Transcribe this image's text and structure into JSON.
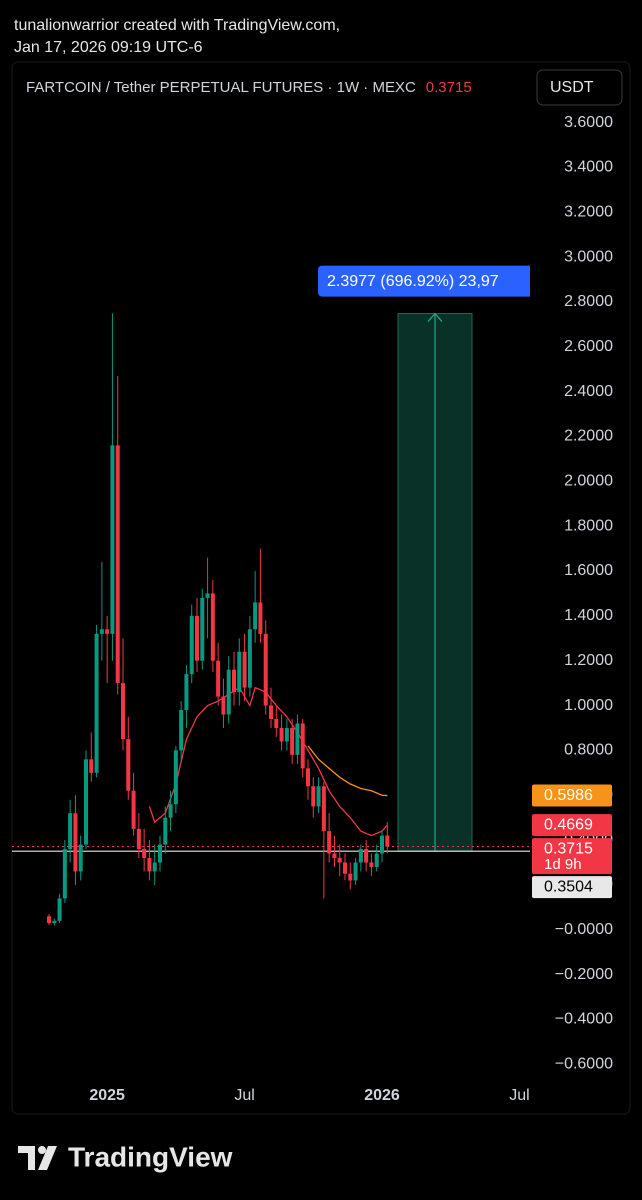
{
  "header": {
    "line1": "tunalionwarrior created with TradingView.com,",
    "line2": "Jan 17, 2026 09:19 UTC-6"
  },
  "footer": {
    "brand": "TradingView"
  },
  "chart_data": {
    "type": "candlestick",
    "title": "FARTCOIN / Tether PERPETUAL FUTURES · 1W · MEXC",
    "currency": "USDT",
    "up_color": "#089981",
    "down_color": "#f23645",
    "x": [
      -11,
      -10,
      -9,
      -8,
      -7,
      -6,
      -5,
      -4,
      -3,
      -2,
      -1,
      0,
      1,
      2,
      3,
      4,
      5,
      6,
      7,
      8,
      9,
      10,
      11,
      12,
      13,
      14,
      15,
      16,
      17,
      18,
      19,
      20,
      21,
      22,
      23,
      24,
      25,
      26,
      27,
      28,
      29,
      30,
      31,
      32,
      33,
      34,
      35,
      36,
      37,
      38,
      39,
      40,
      41,
      42,
      43,
      44,
      45,
      46,
      47,
      48,
      49,
      50,
      51,
      52,
      53
    ],
    "open": [
      0.06,
      0.03,
      0.04,
      0.14,
      0.36,
      0.52,
      0.26,
      0.38,
      0.76,
      0.7,
      1.32,
      1.34,
      1.32,
      2.16,
      1.1,
      0.85,
      0.62,
      0.45,
      0.36,
      0.32,
      0.26,
      0.3,
      0.38,
      0.5,
      0.56,
      0.8,
      0.98,
      1.14,
      1.4,
      1.2,
      1.48,
      1.5,
      1.2,
      1.04,
      0.96,
      1.16,
      1.06,
      1.24,
      1.08,
      1.34,
      1.46,
      1.32,
      1.0,
      0.94,
      0.9,
      0.84,
      0.9,
      0.78,
      0.92,
      0.72,
      0.64,
      0.55,
      0.64,
      0.44,
      0.34,
      0.32,
      0.3,
      0.25,
      0.22,
      0.3,
      0.36,
      0.3,
      0.28,
      0.34,
      0.42
    ],
    "high": [
      0.07,
      0.05,
      0.16,
      0.4,
      0.58,
      0.6,
      0.42,
      0.8,
      0.88,
      1.36,
      1.64,
      1.4,
      2.75,
      2.47,
      1.3,
      0.95,
      0.7,
      0.52,
      0.45,
      0.4,
      0.38,
      0.42,
      0.55,
      0.62,
      0.82,
      1.02,
      1.18,
      1.45,
      1.48,
      1.52,
      1.66,
      1.56,
      1.28,
      1.12,
      1.22,
      1.24,
      1.3,
      1.32,
      1.4,
      1.6,
      1.7,
      1.38,
      1.08,
      1.0,
      0.96,
      0.94,
      0.94,
      0.96,
      0.94,
      0.76,
      0.68,
      0.68,
      0.66,
      0.52,
      0.42,
      0.38,
      0.34,
      0.3,
      0.32,
      0.38,
      0.4,
      0.34,
      0.38,
      0.44,
      0.48
    ],
    "low": [
      0.02,
      0.02,
      0.03,
      0.12,
      0.3,
      0.2,
      0.22,
      0.36,
      0.66,
      0.68,
      1.2,
      1.1,
      1.2,
      1.05,
      0.8,
      0.58,
      0.42,
      0.32,
      0.26,
      0.22,
      0.2,
      0.26,
      0.34,
      0.44,
      0.52,
      0.74,
      0.9,
      1.1,
      1.15,
      1.16,
      1.3,
      1.15,
      1.0,
      0.9,
      0.92,
      1.0,
      1.0,
      1.02,
      1.04,
      1.28,
      1.28,
      0.96,
      0.9,
      0.86,
      0.8,
      0.8,
      0.74,
      0.74,
      0.68,
      0.58,
      0.5,
      0.52,
      0.14,
      0.3,
      0.28,
      0.24,
      0.22,
      0.18,
      0.2,
      0.26,
      0.26,
      0.24,
      0.26,
      0.3,
      0.34
    ],
    "close": [
      0.03,
      0.04,
      0.14,
      0.36,
      0.52,
      0.26,
      0.38,
      0.76,
      0.7,
      1.32,
      1.34,
      1.32,
      2.16,
      1.1,
      0.85,
      0.62,
      0.45,
      0.36,
      0.32,
      0.26,
      0.3,
      0.38,
      0.5,
      0.56,
      0.8,
      0.98,
      1.14,
      1.4,
      1.2,
      1.48,
      1.5,
      1.2,
      1.04,
      0.96,
      1.16,
      1.06,
      1.24,
      1.08,
      1.34,
      1.46,
      1.32,
      1.0,
      0.94,
      0.9,
      0.84,
      0.9,
      0.78,
      0.92,
      0.72,
      0.64,
      0.55,
      0.64,
      0.44,
      0.34,
      0.32,
      0.3,
      0.25,
      0.22,
      0.3,
      0.36,
      0.3,
      0.28,
      0.34,
      0.42,
      0.3715
    ],
    "overlays": [
      {
        "color": "#f23645",
        "x": [
          8,
          9,
          11,
          13,
          15,
          17,
          19,
          21,
          23,
          25,
          27,
          28,
          30,
          32,
          34,
          36,
          38,
          40,
          42,
          44,
          46,
          48,
          50,
          52,
          53
        ],
        "values": [
          0.55,
          0.48,
          0.52,
          0.65,
          0.85,
          0.95,
          1.0,
          1.02,
          1.05,
          1.08,
          1.0,
          1.08,
          1.06,
          1.0,
          0.95,
          0.88,
          0.8,
          0.72,
          0.62,
          0.55,
          0.5,
          0.44,
          0.42,
          0.44,
          0.4669
        ]
      },
      {
        "color": "#f7931a",
        "x": [
          38,
          40,
          42,
          44,
          46,
          48,
          50,
          52,
          53
        ],
        "values": [
          0.82,
          0.76,
          0.72,
          0.68,
          0.65,
          0.63,
          0.62,
          0.6,
          0.5986
        ]
      }
    ],
    "price_labels": [
      {
        "value": 0.5986,
        "color": "#f7931a"
      },
      {
        "value": 0.4669,
        "color": "#f23645"
      },
      {
        "value": 0.3715,
        "color": "#f23645",
        "sublabel": "1d 9h"
      },
      {
        "value": 0.3504,
        "color": "#e8e8e8"
      }
    ],
    "measure": {
      "from": 0.3504,
      "change": 2.3977,
      "label": "2.3977 (696.92%) 23,97"
    },
    "xlim": [
      -18,
      80
    ],
    "xticks": [
      {
        "value": 0,
        "label": "2025"
      },
      {
        "value": 26,
        "label": "Jul"
      },
      {
        "value": 52,
        "label": "2026"
      },
      {
        "value": 78,
        "label": "Jul"
      }
    ],
    "ylim": [
      -0.67,
      3.87
    ],
    "yticks": [
      {
        "value": 3.6,
        "label": "3.6000"
      },
      {
        "value": 3.4,
        "label": "3.4000"
      },
      {
        "value": 3.2,
        "label": "3.2000"
      },
      {
        "value": 3.0,
        "label": "3.0000"
      },
      {
        "value": 2.8,
        "label": "2.8000"
      },
      {
        "value": 2.6,
        "label": "2.6000"
      },
      {
        "value": 2.4,
        "label": "2.4000"
      },
      {
        "value": 2.2,
        "label": "2.2000"
      },
      {
        "value": 2.0,
        "label": "2.0000"
      },
      {
        "value": 1.8,
        "label": "1.8000"
      },
      {
        "value": 1.6,
        "label": "1.6000"
      },
      {
        "value": 1.4,
        "label": "1.4000"
      },
      {
        "value": 1.2,
        "label": "1.2000"
      },
      {
        "value": 1.0,
        "label": "1.0000"
      },
      {
        "value": 0.8,
        "label": "0.8000"
      },
      {
        "value": 0.6,
        "label": "0.6000"
      },
      {
        "value": 0.4,
        "label": "0.4000"
      },
      {
        "value": 0.2,
        "label": "0.2000"
      },
      {
        "value": 0,
        "label": "−0.0000"
      },
      {
        "value": -0.2,
        "label": "−0.2000"
      },
      {
        "value": -0.4,
        "label": "−0.4000"
      },
      {
        "value": -0.6,
        "label": "−0.6000"
      }
    ]
  }
}
